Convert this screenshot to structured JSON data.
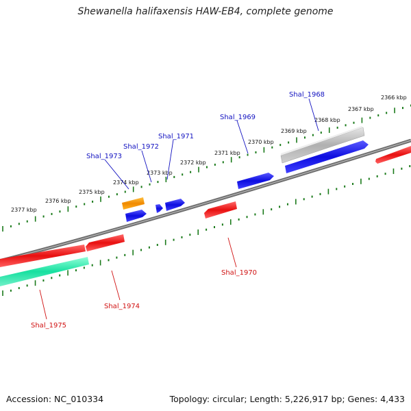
{
  "title": "Shewanella halifaxensis HAW-EB4, complete genome",
  "footer": {
    "accession": "Accession: NC_010334",
    "summary": "Topology: circular; Length: 5,226,917 bp; Genes: 4,433"
  },
  "colors": {
    "forward_gene": "#1010e0",
    "reverse_gene": "#e01818",
    "rna_gene": "#ff9900",
    "pseudo_gene": "#b4b4b4",
    "other_gene": "#20e8a8",
    "ticks": "#1a7a1a",
    "backbone": "#777777"
  },
  "scale_labels": [
    {
      "id": "2366",
      "text": "2366 kbp"
    },
    {
      "id": "2367",
      "text": "2367 kbp"
    },
    {
      "id": "2368",
      "text": "2368 kbp"
    },
    {
      "id": "2369",
      "text": "2369 kbp"
    },
    {
      "id": "2370",
      "text": "2370 kbp"
    },
    {
      "id": "2371",
      "text": "2371 kbp"
    },
    {
      "id": "2372",
      "text": "2372 kbp"
    },
    {
      "id": "2373",
      "text": "2373 kbp"
    },
    {
      "id": "2374",
      "text": "2374 kbp"
    },
    {
      "id": "2375",
      "text": "2375 kbp"
    },
    {
      "id": "2376",
      "text": "2376 kbp"
    },
    {
      "id": "2377",
      "text": "2377 kbp"
    }
  ],
  "gene_labels": {
    "shal_1968": "Shal_1968",
    "shal_1969": "Shal_1969",
    "shal_1970": "Shal_1970",
    "shal_1971": "Shal_1971",
    "shal_1972": "Shal_1972",
    "shal_1973": "Shal_1973",
    "shal_1974": "Shal_1974",
    "shal_1975": "Shal_1975"
  }
}
